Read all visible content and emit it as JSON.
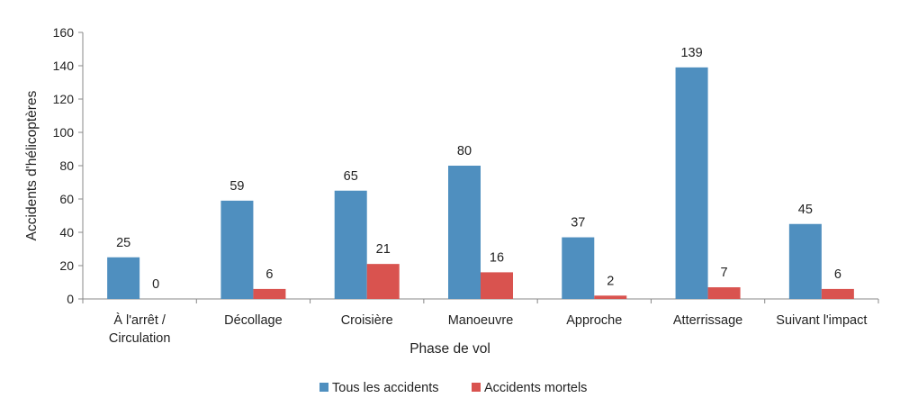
{
  "chart_data": {
    "type": "bar",
    "categories": [
      [
        "À l'arrêt /",
        "Circulation"
      ],
      [
        "Décollage"
      ],
      [
        "Croisière"
      ],
      [
        "Manoeuvre"
      ],
      [
        "Approche"
      ],
      [
        "Atterrissage"
      ],
      [
        "Suivant l'impact"
      ]
    ],
    "series": [
      {
        "name": "Tous les accidents",
        "values": [
          25,
          59,
          65,
          80,
          37,
          139,
          45
        ],
        "color": "#4f8fbf"
      },
      {
        "name": "Accidents mortels",
        "values": [
          0,
          6,
          21,
          16,
          2,
          7,
          6
        ],
        "color": "#d9534f"
      }
    ],
    "xlabel": "Phase de vol",
    "ylabel": "Accidents d'hélicoptères",
    "ylim": [
      0,
      160
    ],
    "yticks": [
      "0",
      "20",
      "40",
      "60",
      "80",
      "100",
      "120",
      "140",
      "160"
    ],
    "grid": false,
    "legend": "bottom"
  }
}
